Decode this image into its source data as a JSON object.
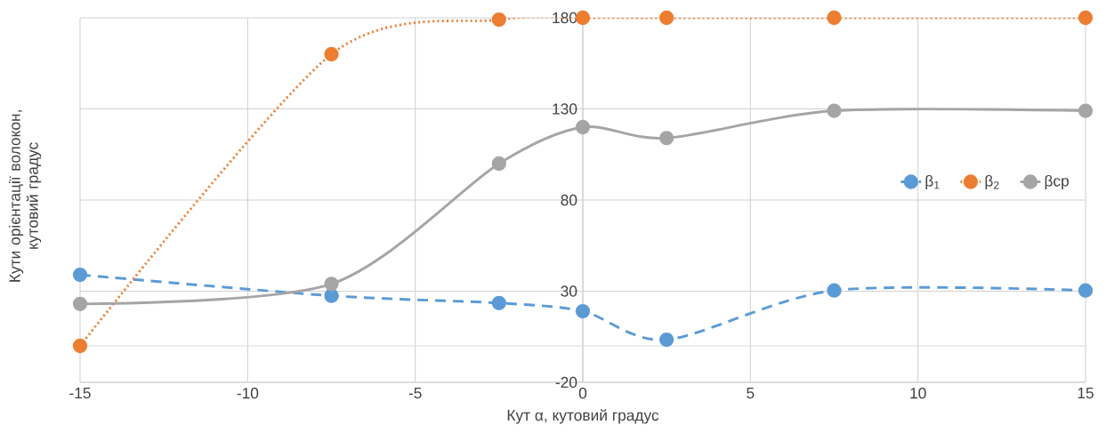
{
  "chart_data": {
    "type": "line",
    "xlabel": "Кут α, кутовий градус",
    "ylabel": "Кути орієнтації волокон, кутовий градус",
    "x": [
      -15,
      -7.5,
      -2.5,
      0,
      2.5,
      7.5,
      15
    ],
    "series": [
      {
        "name": "β$_{1}$",
        "color": "#5b9bd5",
        "line_style": "dashed",
        "values": [
          39,
          27.5,
          23.5,
          19,
          3.4,
          30.4,
          30.4
        ]
      },
      {
        "name": "β$_{2}$",
        "color": "#ed7d31",
        "line_style": "dotted",
        "values": [
          0,
          160,
          179,
          180,
          180,
          180,
          180
        ]
      },
      {
        "name": "βср",
        "color": "#a5a5a5",
        "line_style": "solid",
        "values": [
          23,
          34,
          100,
          120,
          114,
          129,
          129
        ]
      }
    ],
    "xlim": [
      -15,
      15
    ],
    "xticks": [
      -15,
      -10,
      -5,
      0,
      5,
      10,
      15
    ],
    "ylim": [
      -20,
      180
    ],
    "yticks": [
      -20,
      30,
      80,
      130,
      180
    ],
    "ref_lines": [
      {
        "axis": "y",
        "value": 0,
        "color": "#d9d9d9"
      }
    ],
    "grid": true,
    "legend": "right",
    "marker": "circle"
  }
}
